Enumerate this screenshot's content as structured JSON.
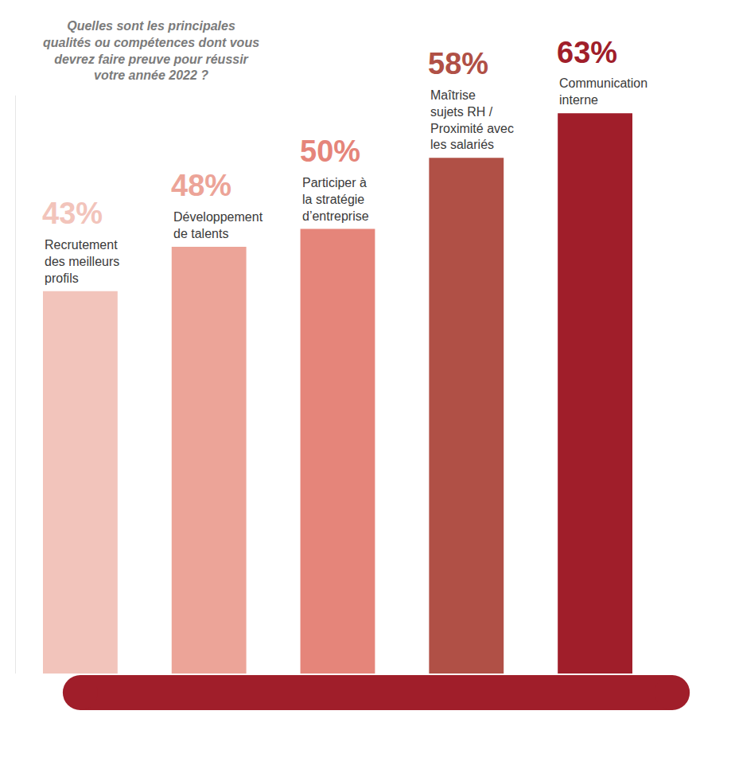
{
  "chart_data": {
    "type": "bar",
    "title": "Quelles sont les principales qualités ou compétences dont vous devrez faire preuve pour réussir votre année 2022 ?",
    "categories": [
      "Recrutement des meilleurs profils",
      "Développement de talents",
      "Participer à la stratégie d’entreprise",
      "Maîtrise sujets RH / Proximité avec les salariés",
      "Communication interne"
    ],
    "values": [
      43,
      48,
      50,
      58,
      63
    ],
    "value_labels": [
      "43%",
      "48%",
      "50%",
      "58%",
      "63%"
    ],
    "colors": [
      "#f2c4bb",
      "#eca498",
      "#e5857a",
      "#b05046",
      "#a01e2a"
    ],
    "ylim": [
      0,
      65
    ],
    "yticks": [],
    "grid": false,
    "data_labels": true,
    "tick_labels": false
  }
}
